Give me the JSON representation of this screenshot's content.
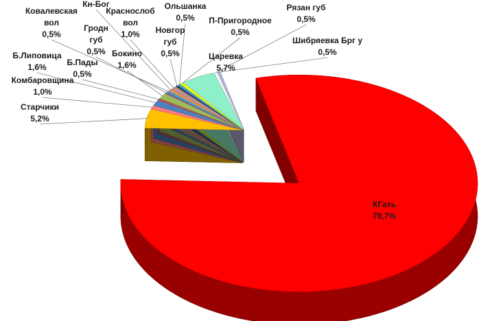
{
  "chart_data": {
    "type": "pie",
    "style": "3d-exploded",
    "title": "",
    "slices": [
      {
        "label_lines": [
          "КГать"
        ],
        "value_text": "79,7%",
        "value": 79.7,
        "color": "#ff0000"
      },
      {
        "label_lines": [
          "Старчики"
        ],
        "value_text": "5,2%",
        "value": 5.2,
        "color": "#ffc000"
      },
      {
        "label_lines": [
          "Комбаровщина"
        ],
        "value_text": "1,0%",
        "value": 1.0,
        "color": "#ff7c80"
      },
      {
        "label_lines": [
          "Б.Липовица"
        ],
        "value_text": "1,6%",
        "value": 1.6,
        "color": "#4f81bd"
      },
      {
        "label_lines": [
          "Б.Пады"
        ],
        "value_text": "0,5%",
        "value": 0.5,
        "color": "#c0504d"
      },
      {
        "label_lines": [
          "Бокино"
        ],
        "value_text": "1,6%",
        "value": 1.6,
        "color": "#9bbb59"
      },
      {
        "label_lines": [
          "Гродн",
          "губ"
        ],
        "value_text": "0,5%",
        "value": 0.5,
        "color": "#8064a2"
      },
      {
        "label_lines": [
          "Ковалевская",
          "вол"
        ],
        "value_text": "0,5%",
        "value": 0.5,
        "color": "#4bacc6"
      },
      {
        "label_lines": [
          "Кн-Бог"
        ],
        "value_text": "",
        "value": 0.5,
        "color": "#f79646"
      },
      {
        "label_lines": [
          "Краснослоб",
          "вол"
        ],
        "value_text": "1,0%",
        "value": 1.0,
        "color": "#c0908e"
      },
      {
        "label_lines": [
          "Новгор",
          "губ"
        ],
        "value_text": "0,5%",
        "value": 0.5,
        "color": "#2c4d75"
      },
      {
        "label_lines": [
          "Ольшанка"
        ],
        "value_text": "0,5%",
        "value": 0.5,
        "color": "#4bacc6"
      },
      {
        "label_lines": [
          "П-Пригородное"
        ],
        "value_text": "0,5%",
        "value": 0.5,
        "color": "#ffff00"
      },
      {
        "label_lines": [
          "Царевка"
        ],
        "value_text": "5,7%",
        "value": 5.7,
        "color": "#8ef0c8"
      },
      {
        "label_lines": [
          "Рязан губ"
        ],
        "value_text": "0,5%",
        "value": 0.5,
        "color": "#ffffff"
      },
      {
        "label_lines": [
          "Шибряевка Брг у"
        ],
        "value_text": "0,5%",
        "value": 0.5,
        "color": "#b0b4d8"
      }
    ]
  }
}
